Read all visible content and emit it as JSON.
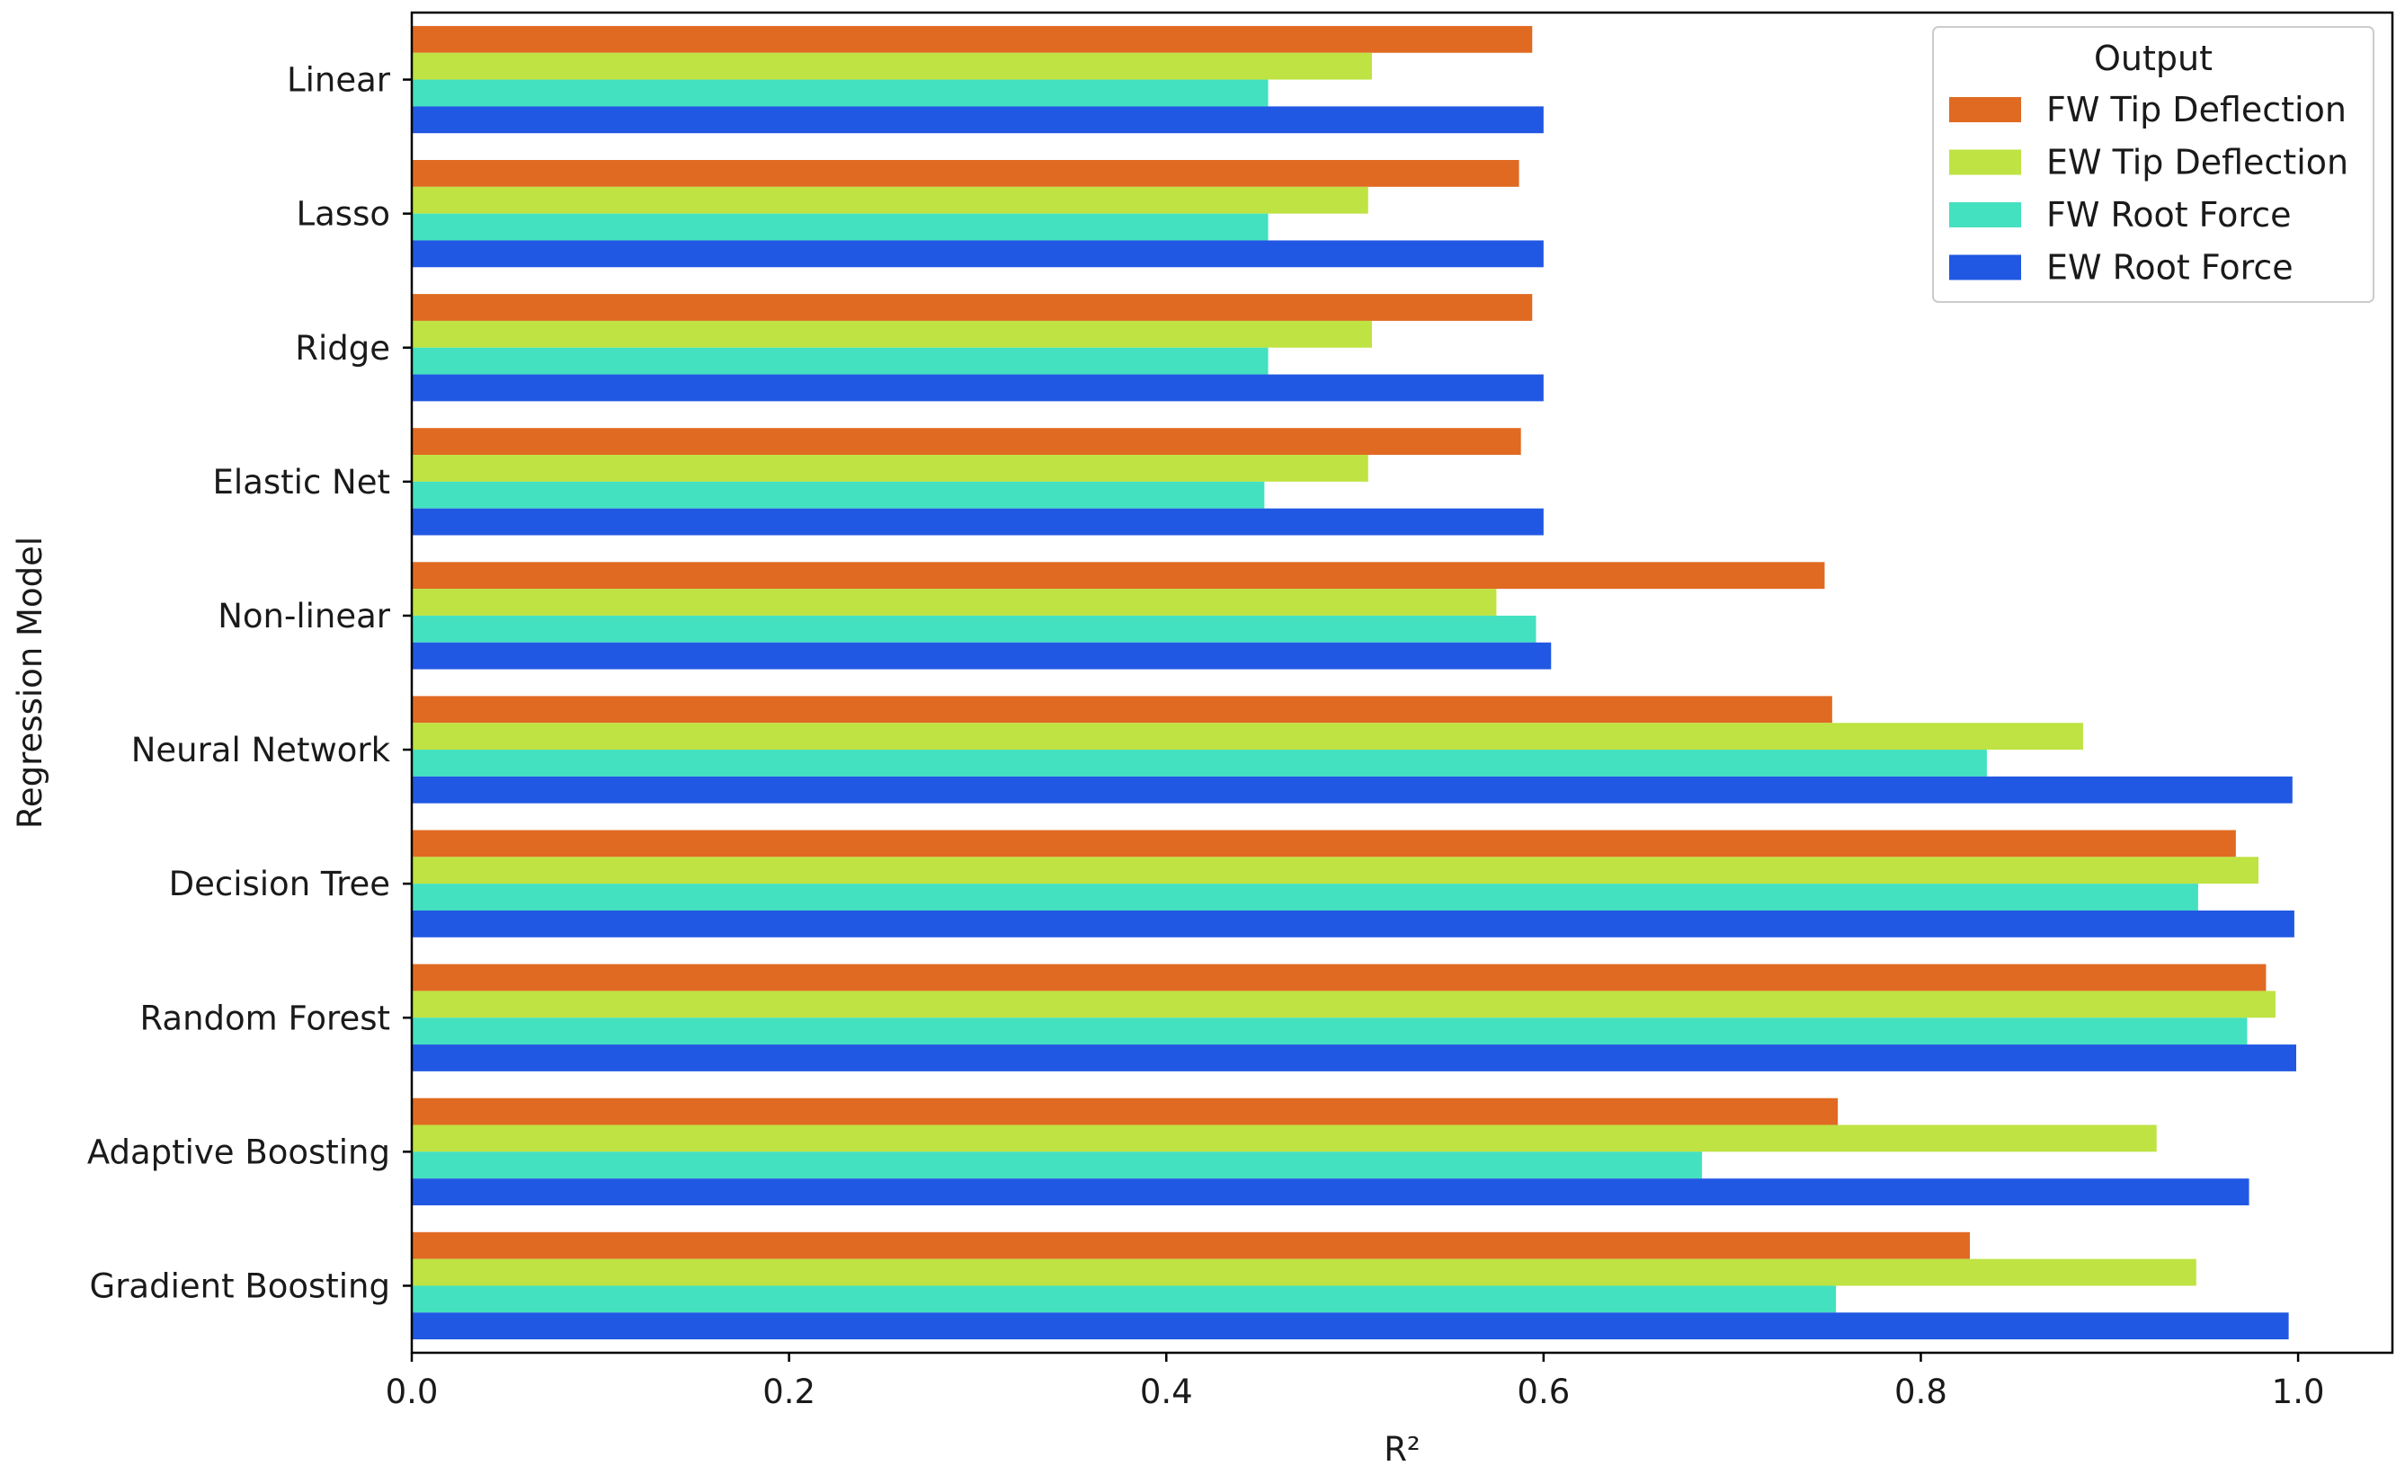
{
  "chart_data": {
    "type": "bar",
    "orientation": "horizontal",
    "xlabel": "R²",
    "ylabel": "Regression Model",
    "xlim": [
      0.0,
      1.05
    ],
    "xticks": [
      0.0,
      0.2,
      0.4,
      0.6,
      0.8,
      1.0
    ],
    "xtick_labels": [
      "0.0",
      "0.2",
      "0.4",
      "0.6",
      "0.8",
      "1.0"
    ],
    "grid": false,
    "legend_position": "top-right",
    "legend_title": "Output",
    "categories": [
      "Linear",
      "Lasso",
      "Ridge",
      "Elastic Net",
      "Non-linear",
      "Neural Network",
      "Decision Tree",
      "Random Forest",
      "Adaptive Boosting",
      "Gradient Boosting"
    ],
    "series": [
      {
        "name": "FW Tip Deflection",
        "color": "#E06A22",
        "values": [
          0.594,
          0.587,
          0.594,
          0.588,
          0.749,
          0.753,
          0.967,
          0.983,
          0.756,
          0.826
        ]
      },
      {
        "name": "EW Tip Deflection",
        "color": "#BEE342",
        "values": [
          0.509,
          0.507,
          0.509,
          0.507,
          0.575,
          0.886,
          0.979,
          0.988,
          0.925,
          0.946
        ]
      },
      {
        "name": "FW Root Force",
        "color": "#43E1C0",
        "values": [
          0.454,
          0.454,
          0.454,
          0.452,
          0.596,
          0.835,
          0.947,
          0.973,
          0.684,
          0.755
        ]
      },
      {
        "name": "EW Root Force",
        "color": "#2158E3",
        "values": [
          0.6,
          0.6,
          0.6,
          0.6,
          0.604,
          0.997,
          0.998,
          0.999,
          0.974,
          0.995
        ]
      }
    ]
  }
}
